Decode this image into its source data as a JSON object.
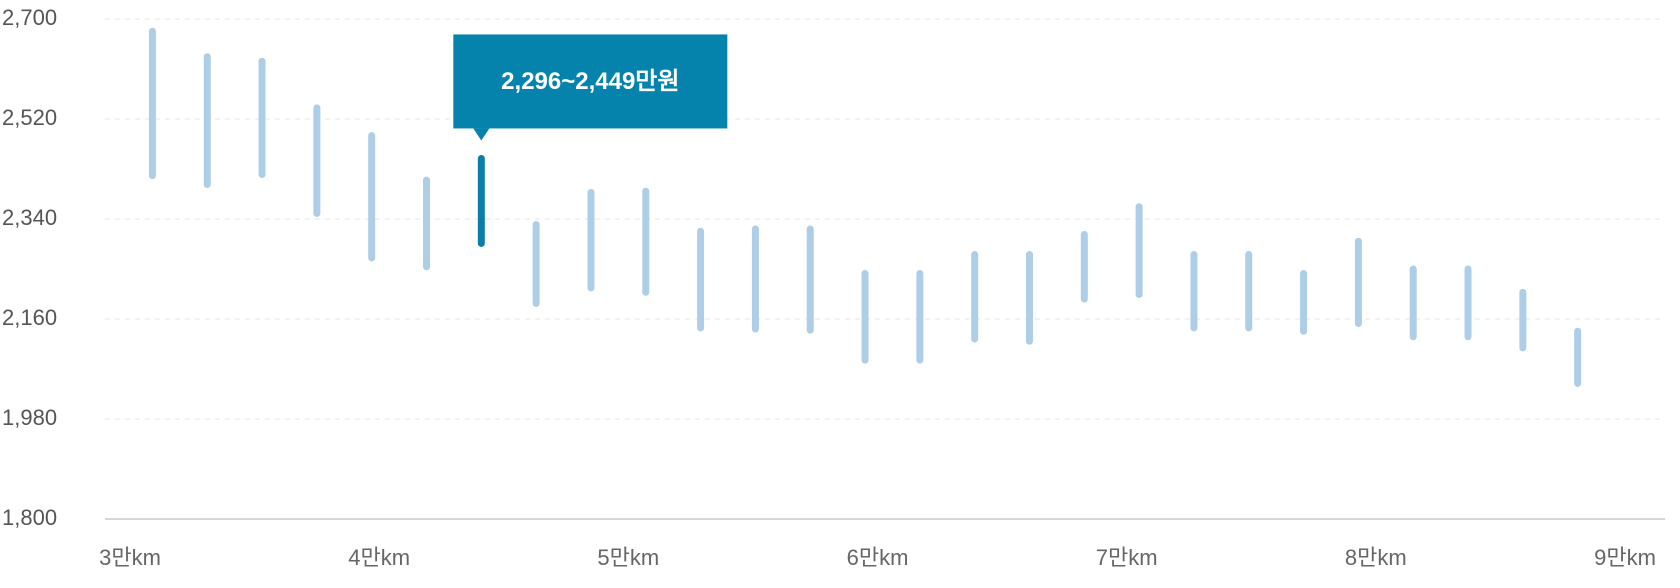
{
  "chart_data": {
    "type": "range-bar",
    "title": "",
    "xlabel": "",
    "ylabel": "",
    "ylim": [
      1800,
      2700
    ],
    "y_ticks": [
      "2,700",
      "2,520",
      "2,340",
      "2,160",
      "1,980",
      "1,800"
    ],
    "y_tick_values": [
      2700,
      2520,
      2340,
      2160,
      1980,
      1800
    ],
    "x_ticks": [
      "3만km",
      "4만km",
      "5만km",
      "6만km",
      "7만km",
      "8만km",
      "9만km"
    ],
    "x_tick_values": [
      30000,
      40000,
      50000,
      60000,
      70000,
      80000,
      90000
    ],
    "xlim": [
      30000,
      92000
    ],
    "grid": true,
    "colors": {
      "range": "#aecde6",
      "highlight": "#0a7ea8",
      "grid": "#e4e4e4",
      "axis": "#cccccc"
    },
    "highlight_index": 6,
    "tooltip": {
      "text": "2,296~2,449만원",
      "color": "#0583ac"
    },
    "ranges": [
      {
        "x": 30900,
        "low": 2418,
        "high": 2678
      },
      {
        "x": 33100,
        "low": 2402,
        "high": 2632
      },
      {
        "x": 35300,
        "low": 2420,
        "high": 2624
      },
      {
        "x": 37500,
        "low": 2350,
        "high": 2540
      },
      {
        "x": 39700,
        "low": 2270,
        "high": 2490
      },
      {
        "x": 41900,
        "low": 2254,
        "high": 2410
      },
      {
        "x": 44100,
        "low": 2296,
        "high": 2449
      },
      {
        "x": 46300,
        "low": 2188,
        "high": 2330
      },
      {
        "x": 48500,
        "low": 2216,
        "high": 2388
      },
      {
        "x": 50700,
        "low": 2208,
        "high": 2390
      },
      {
        "x": 52900,
        "low": 2144,
        "high": 2318
      },
      {
        "x": 55100,
        "low": 2142,
        "high": 2322
      },
      {
        "x": 57300,
        "low": 2140,
        "high": 2322
      },
      {
        "x": 59500,
        "low": 2086,
        "high": 2242
      },
      {
        "x": 61700,
        "low": 2086,
        "high": 2242
      },
      {
        "x": 63900,
        "low": 2124,
        "high": 2276
      },
      {
        "x": 66100,
        "low": 2120,
        "high": 2276
      },
      {
        "x": 68300,
        "low": 2196,
        "high": 2312
      },
      {
        "x": 70500,
        "low": 2204,
        "high": 2362
      },
      {
        "x": 72700,
        "low": 2144,
        "high": 2276
      },
      {
        "x": 74900,
        "low": 2144,
        "high": 2276
      },
      {
        "x": 77100,
        "low": 2138,
        "high": 2242
      },
      {
        "x": 79300,
        "low": 2152,
        "high": 2300
      },
      {
        "x": 81500,
        "low": 2128,
        "high": 2250
      },
      {
        "x": 83700,
        "low": 2128,
        "high": 2250
      },
      {
        "x": 85900,
        "low": 2108,
        "high": 2208
      },
      {
        "x": 88100,
        "low": 2044,
        "high": 2138
      }
    ]
  }
}
